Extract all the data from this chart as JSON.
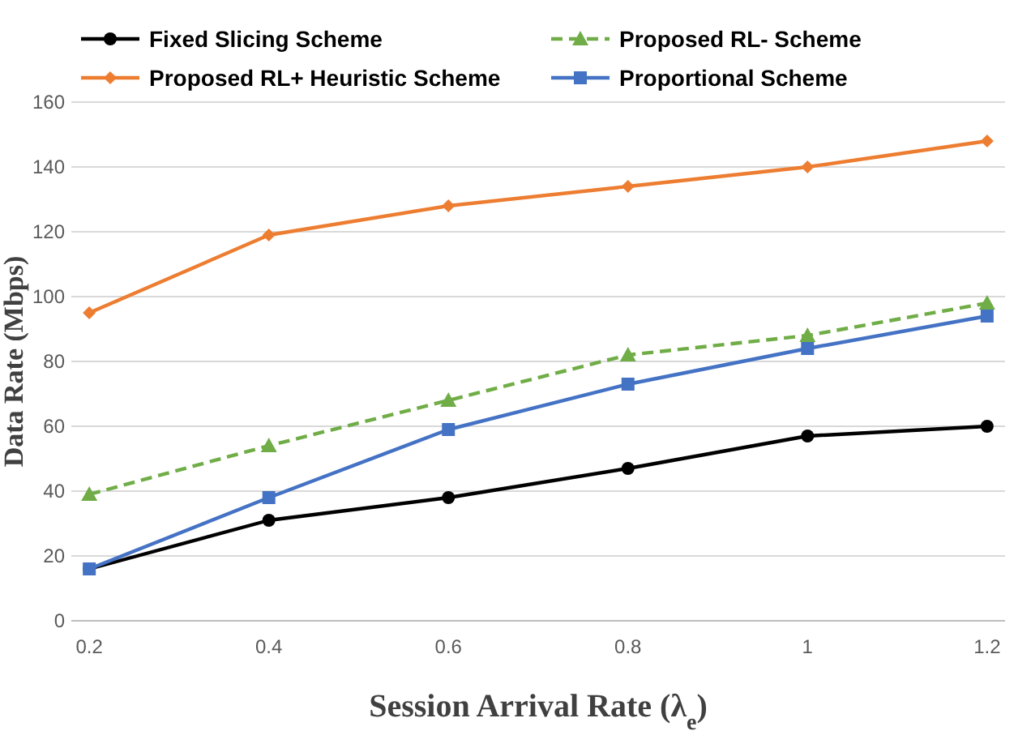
{
  "chart_data": {
    "type": "line",
    "xlabel": "Session Arrival Rate (λ$_{e}$)",
    "ylabel": "Data Rate (Mbps)",
    "x": [
      0.2,
      0.4,
      0.6,
      0.8,
      1,
      1.2
    ],
    "series": [
      {
        "name": "Fixed Slicing  Scheme",
        "color": "#000000",
        "marker": "circle",
        "line_style": "solid",
        "values": [
          16,
          31,
          38,
          47,
          57,
          60
        ]
      },
      {
        "name": "Proposed RL- Scheme",
        "color": "#70ad47",
        "marker": "triangle",
        "line_style": "dashed",
        "values": [
          39,
          54,
          68,
          82,
          88,
          98
        ]
      },
      {
        "name": "Proposed RL+ Heuristic Scheme",
        "color": "#ed7d31",
        "marker": "diamond",
        "line_style": "solid",
        "values": [
          95,
          119,
          128,
          134,
          140,
          148
        ]
      },
      {
        "name": "Proportional Scheme",
        "color": "#4472c4",
        "marker": "square",
        "line_style": "solid",
        "values": [
          16,
          38,
          59,
          73,
          84,
          94
        ]
      }
    ],
    "xlim": [
      0.18,
      1.22
    ],
    "xticks": [
      {
        "value": 0.2,
        "label": "0.2"
      },
      {
        "value": 0.4,
        "label": "0.4"
      },
      {
        "value": 0.6,
        "label": "0.6"
      },
      {
        "value": 0.8,
        "label": "0.8"
      },
      {
        "value": 1,
        "label": "1"
      },
      {
        "value": 1.2,
        "label": "1.2"
      }
    ],
    "ylim": [
      0,
      160
    ],
    "yticks": [
      0,
      20,
      40,
      60,
      80,
      100,
      120,
      140,
      160
    ],
    "grid": "y",
    "legend": "top"
  }
}
